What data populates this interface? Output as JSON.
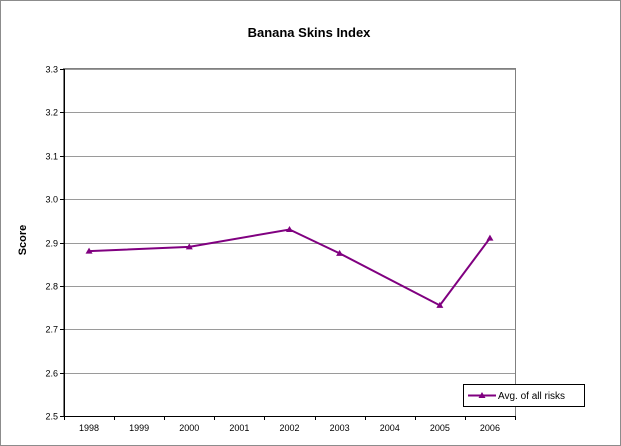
{
  "chart_data": {
    "type": "line",
    "title": "Banana Skins Index",
    "xlabel": "",
    "ylabel": "Score",
    "categories": [
      "1998",
      "1999",
      "2000",
      "2001",
      "2002",
      "2003",
      "2004",
      "2005",
      "2006"
    ],
    "series": [
      {
        "name": "Avg. of all risks",
        "color": "#800080",
        "marker": "triangle",
        "points": [
          {
            "x": "1998",
            "y": 2.88
          },
          {
            "x": "2000",
            "y": 2.89
          },
          {
            "x": "2002",
            "y": 2.93
          },
          {
            "x": "2003",
            "y": 2.875
          },
          {
            "x": "2005",
            "y": 2.755
          },
          {
            "x": "2006",
            "y": 2.91
          }
        ]
      }
    ],
    "ylim": [
      2.5,
      3.3
    ],
    "yticks": [
      "2.5",
      "2.6",
      "2.7",
      "2.8",
      "2.9",
      "3.0",
      "3.1",
      "3.2",
      "3.3"
    ],
    "grid": true,
    "legend_position": "bottom-right"
  }
}
